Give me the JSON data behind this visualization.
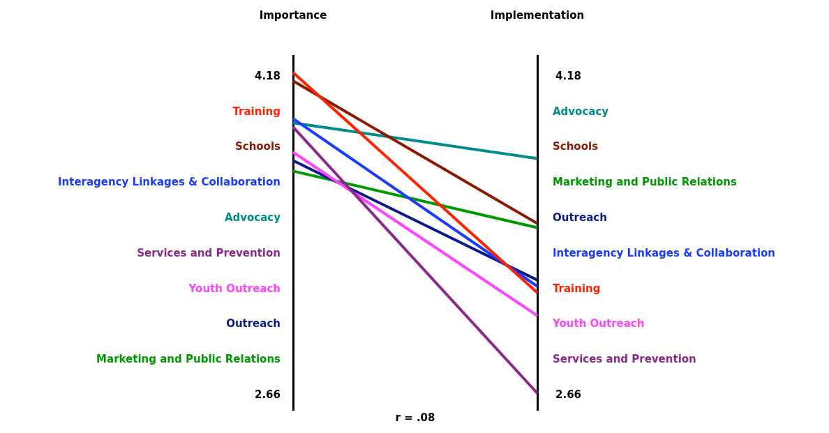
{
  "chart_data": {
    "type": "line",
    "categories": [
      "Importance",
      "Implementation"
    ],
    "ylim": [
      2.59,
      4.28
    ],
    "yticks": [
      4.18,
      2.66
    ],
    "y2lim": [
      2.59,
      4.28
    ],
    "y2ticks": [
      4.18,
      2.66
    ],
    "series": [
      {
        "name": "Training",
        "color": "#ff2200",
        "values": [
          4.2,
          3.15
        ]
      },
      {
        "name": "Schools",
        "color": "#8b1a00",
        "values": [
          4.16,
          3.48
        ]
      },
      {
        "name": "Interagency Linkages & Collaboration",
        "color": "#1a3cff",
        "values": [
          3.98,
          3.18
        ]
      },
      {
        "name": "Advocacy",
        "color": "#008b8b",
        "values": [
          3.96,
          3.79
        ]
      },
      {
        "name": "Services and Prevention",
        "color": "#8b2a8b",
        "values": [
          3.94,
          2.67
        ]
      },
      {
        "name": "Youth Outreach",
        "color": "#ff44ff",
        "values": [
          3.82,
          3.04
        ]
      },
      {
        "name": "Outreach",
        "color": "#0a1a8b",
        "values": [
          3.78,
          3.21
        ]
      },
      {
        "name": "Marketing and Public Relations",
        "color": "#009900",
        "values": [
          3.73,
          3.46
        ]
      }
    ],
    "marker": "none",
    "legend": false,
    "annotations": [
      "r = .08"
    ]
  }
}
